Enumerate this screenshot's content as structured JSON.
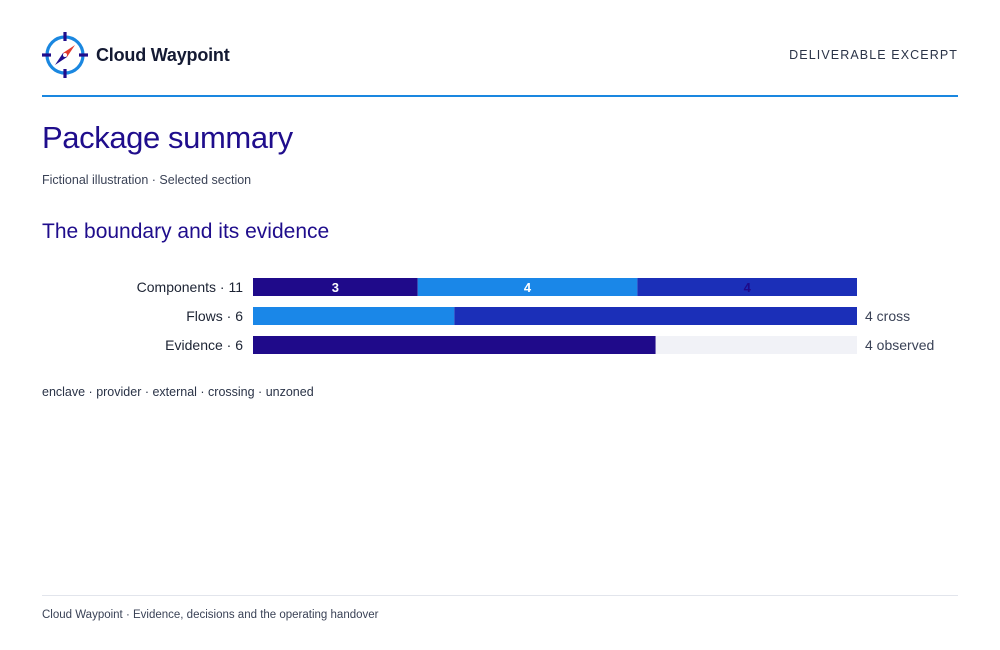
{
  "brand": {
    "name": "Cloud Waypoint",
    "icon": "compass-icon"
  },
  "header": {
    "label": "DELIVERABLE EXCERPT"
  },
  "page": {
    "title": "Package summary",
    "subtitle": "Fictional illustration · Selected section"
  },
  "section": {
    "title": "The boundary and its evidence"
  },
  "chart_data": {
    "type": "bar",
    "orientation": "horizontal",
    "stacked": true,
    "rows": [
      {
        "label": "Components · 11",
        "total": 11,
        "segments": [
          {
            "value": 3,
            "label": "3",
            "color": "#1f0a8a"
          },
          {
            "value": 4,
            "label": "4",
            "color": "#1a87e8"
          },
          {
            "value": 4,
            "label": "4",
            "color": "#1b2fb8"
          }
        ],
        "end_label": ""
      },
      {
        "label": "Flows · 6",
        "total": 6,
        "segments": [
          {
            "value": 2,
            "label": "",
            "color": "#1a87e8"
          },
          {
            "value": 4,
            "label": "",
            "color": "#1b2fb8"
          }
        ],
        "end_label": "4 cross"
      },
      {
        "label": "Evidence · 6",
        "total": 6,
        "segments": [
          {
            "value": 4,
            "label": "",
            "color": "#1f0a8a"
          },
          {
            "value": 2,
            "label": "",
            "color": "#f1f2f7"
          }
        ],
        "end_label": "4 observed"
      }
    ],
    "legend": "enclave · provider · external · crossing · unzoned"
  },
  "footer": {
    "text": "Cloud Waypoint · Evidence, decisions and the operating handover"
  },
  "colors": {
    "accent": "#1a87e0",
    "heading": "#1f0d8c",
    "enclave": "#1f0a8a",
    "provider": "#1a87e8",
    "external": "#1b2fb8",
    "empty": "#f1f2f7"
  }
}
